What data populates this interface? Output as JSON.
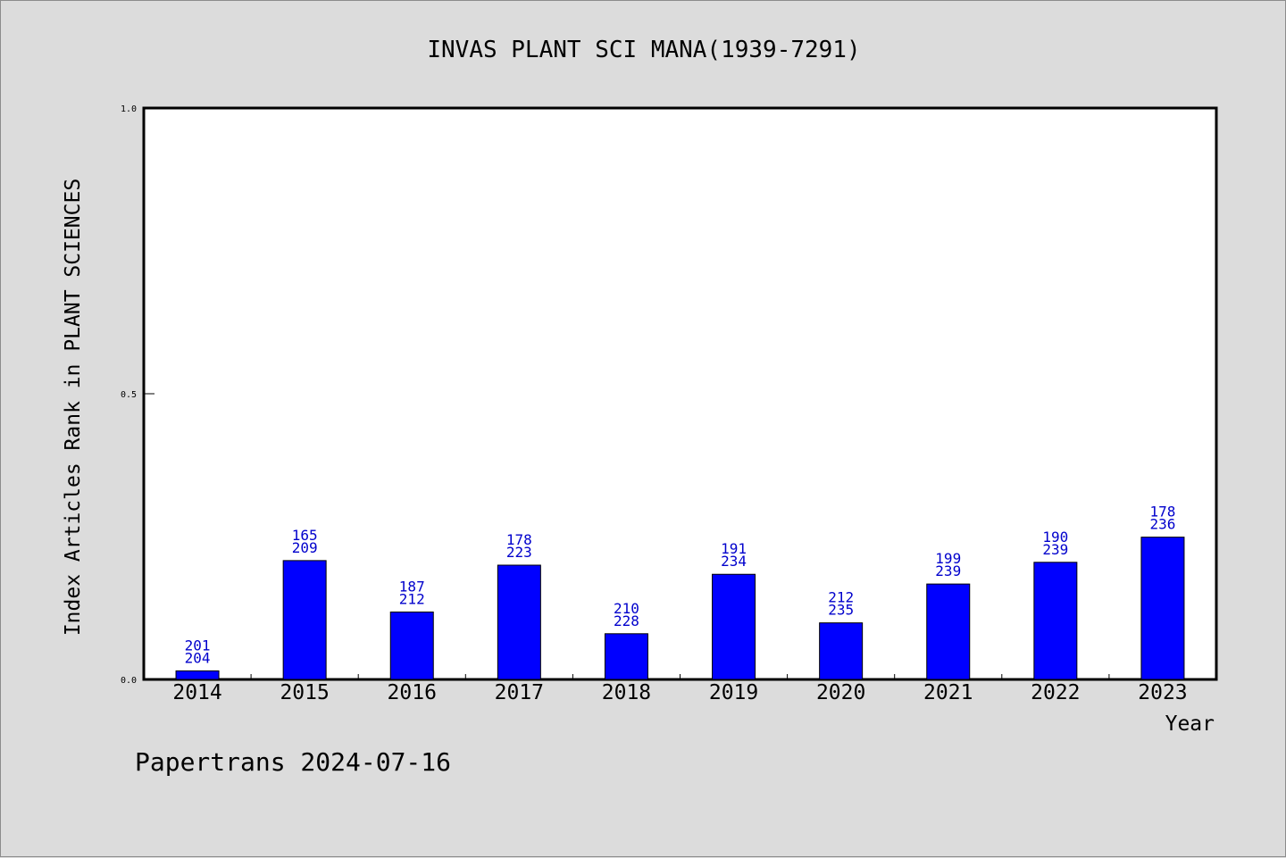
{
  "chart_data": {
    "type": "bar",
    "title": "INVAS PLANT SCI MANA(1939-7291)",
    "xlabel": "Year",
    "ylabel": "Index Articles Rank in PLANT SCIENCES",
    "footer": "Papertrans 2024-07-16",
    "categories": [
      "2014",
      "2015",
      "2016",
      "2017",
      "2018",
      "2019",
      "2020",
      "2021",
      "2022",
      "2023"
    ],
    "values": [
      0.015,
      0.208,
      0.118,
      0.2,
      0.08,
      0.184,
      0.099,
      0.167,
      0.205,
      0.249
    ],
    "labels_top": [
      "201",
      "165",
      "187",
      "178",
      "210",
      "191",
      "212",
      "199",
      "190",
      "178"
    ],
    "labels_bottom": [
      "204",
      "209",
      "212",
      "223",
      "228",
      "234",
      "235",
      "239",
      "239",
      "236"
    ],
    "ylim": [
      0,
      1.0
    ],
    "yticks": [
      "0.0",
      "0.5",
      "1.0"
    ],
    "bar_color": "#0000ff",
    "label_color": "#0000cc"
  }
}
